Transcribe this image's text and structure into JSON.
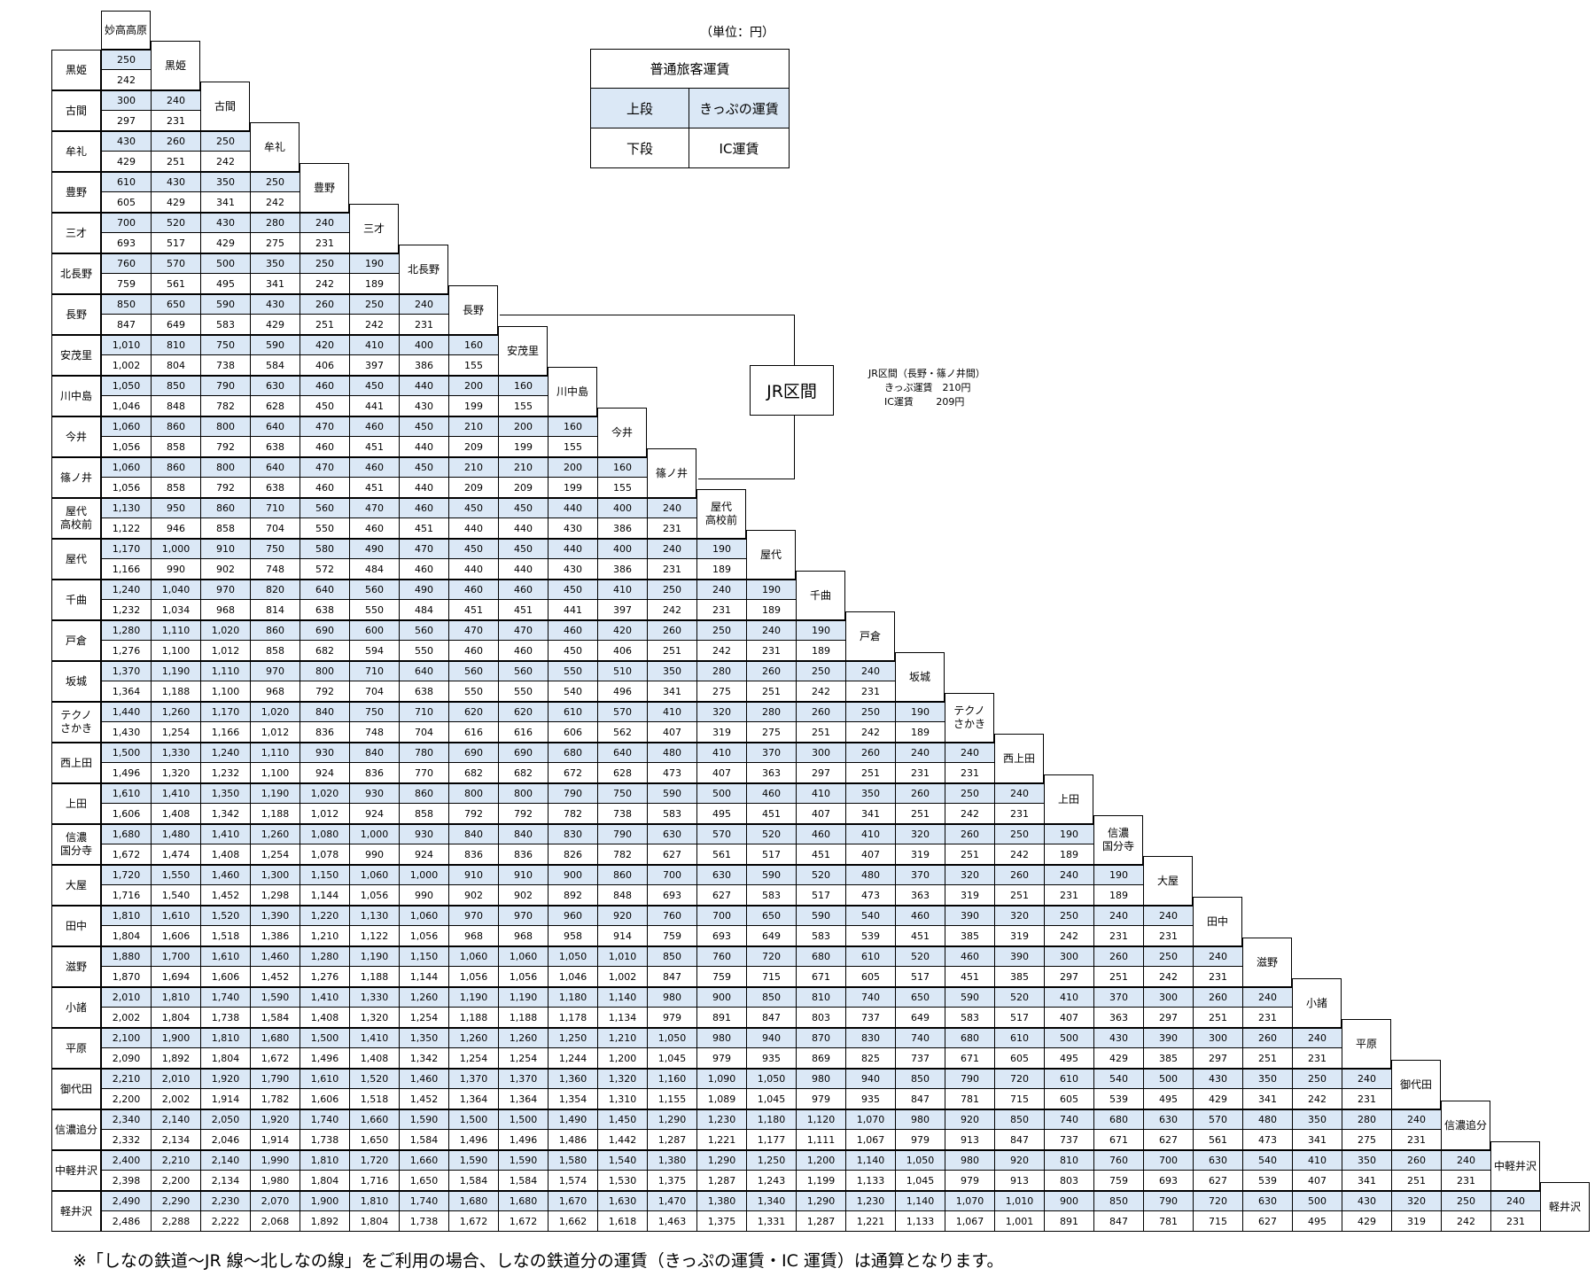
{
  "unit_label": "（単位：円）",
  "legend": {
    "title": "普通旅客運賃",
    "upper_label": "上段",
    "upper_desc": "きっぷの運賃",
    "lower_label": "下段",
    "lower_desc": "IC運賃"
  },
  "jr_section": {
    "label": "JR区間",
    "note_title": "JR区間（長野・篠ノ井間）",
    "ticket_fare": "きっぷ運賃　210円",
    "ic_fare": "IC運賃　　 209円"
  },
  "footnote": "※「しなの鉄道～JR 線～北しなの線」をご利用の場合、しなの鉄道分の運賃（きっぷの運賃・IC 運賃）は通算となります。",
  "colors": {
    "ticket_row_bg": "#dbe8f6"
  },
  "stations": [
    "妙高高原",
    "黒姫",
    "古間",
    "牟礼",
    "豊野",
    "三才",
    "北長野",
    "長野",
    "安茂里",
    "川中島",
    "今井",
    "篠ノ井",
    "屋代\n高校前",
    "屋代",
    "千曲",
    "戸倉",
    "坂城",
    "テクノ\nさかき",
    "西上田",
    "上田",
    "信濃\n国分寺",
    "大屋",
    "田中",
    "滋野",
    "小諸",
    "平原",
    "御代田",
    "信濃追分",
    "中軽井沢",
    "軽井沢"
  ],
  "fares": [
    {
      "t": [
        "250"
      ],
      "ic": [
        "242"
      ]
    },
    {
      "t": [
        "300",
        "240"
      ],
      "ic": [
        "297",
        "231"
      ]
    },
    {
      "t": [
        "430",
        "260",
        "250"
      ],
      "ic": [
        "429",
        "251",
        "242"
      ]
    },
    {
      "t": [
        "610",
        "430",
        "350",
        "250"
      ],
      "ic": [
        "605",
        "429",
        "341",
        "242"
      ]
    },
    {
      "t": [
        "700",
        "520",
        "430",
        "280",
        "240"
      ],
      "ic": [
        "693",
        "517",
        "429",
        "275",
        "231"
      ]
    },
    {
      "t": [
        "760",
        "570",
        "500",
        "350",
        "250",
        "190"
      ],
      "ic": [
        "759",
        "561",
        "495",
        "341",
        "242",
        "189"
      ]
    },
    {
      "t": [
        "850",
        "650",
        "590",
        "430",
        "260",
        "250",
        "240"
      ],
      "ic": [
        "847",
        "649",
        "583",
        "429",
        "251",
        "242",
        "231"
      ]
    },
    {
      "t": [
        "1,010",
        "810",
        "750",
        "590",
        "420",
        "410",
        "400",
        "160"
      ],
      "ic": [
        "1,002",
        "804",
        "738",
        "584",
        "406",
        "397",
        "386",
        "155"
      ]
    },
    {
      "t": [
        "1,050",
        "850",
        "790",
        "630",
        "460",
        "450",
        "440",
        "200",
        "160"
      ],
      "ic": [
        "1,046",
        "848",
        "782",
        "628",
        "450",
        "441",
        "430",
        "199",
        "155"
      ]
    },
    {
      "t": [
        "1,060",
        "860",
        "800",
        "640",
        "470",
        "460",
        "450",
        "210",
        "200",
        "160"
      ],
      "ic": [
        "1,056",
        "858",
        "792",
        "638",
        "460",
        "451",
        "440",
        "209",
        "199",
        "155"
      ]
    },
    {
      "t": [
        "1,060",
        "860",
        "800",
        "640",
        "470",
        "460",
        "450",
        "210",
        "210",
        "200",
        "160"
      ],
      "ic": [
        "1,056",
        "858",
        "792",
        "638",
        "460",
        "451",
        "440",
        "209",
        "209",
        "199",
        "155"
      ]
    },
    {
      "t": [
        "1,130",
        "950",
        "860",
        "710",
        "560",
        "470",
        "460",
        "450",
        "450",
        "440",
        "400",
        "240"
      ],
      "ic": [
        "1,122",
        "946",
        "858",
        "704",
        "550",
        "460",
        "451",
        "440",
        "440",
        "430",
        "386",
        "231"
      ]
    },
    {
      "t": [
        "1,170",
        "1,000",
        "910",
        "750",
        "580",
        "490",
        "470",
        "450",
        "450",
        "440",
        "400",
        "240",
        "190"
      ],
      "ic": [
        "1,166",
        "990",
        "902",
        "748",
        "572",
        "484",
        "460",
        "440",
        "440",
        "430",
        "386",
        "231",
        "189"
      ]
    },
    {
      "t": [
        "1,240",
        "1,040",
        "970",
        "820",
        "640",
        "560",
        "490",
        "460",
        "460",
        "450",
        "410",
        "250",
        "240",
        "190"
      ],
      "ic": [
        "1,232",
        "1,034",
        "968",
        "814",
        "638",
        "550",
        "484",
        "451",
        "451",
        "441",
        "397",
        "242",
        "231",
        "189"
      ]
    },
    {
      "t": [
        "1,280",
        "1,110",
        "1,020",
        "860",
        "690",
        "600",
        "560",
        "470",
        "470",
        "460",
        "420",
        "260",
        "250",
        "240",
        "190"
      ],
      "ic": [
        "1,276",
        "1,100",
        "1,012",
        "858",
        "682",
        "594",
        "550",
        "460",
        "460",
        "450",
        "406",
        "251",
        "242",
        "231",
        "189"
      ]
    },
    {
      "t": [
        "1,370",
        "1,190",
        "1,110",
        "970",
        "800",
        "710",
        "640",
        "560",
        "560",
        "550",
        "510",
        "350",
        "280",
        "260",
        "250",
        "240"
      ],
      "ic": [
        "1,364",
        "1,188",
        "1,100",
        "968",
        "792",
        "704",
        "638",
        "550",
        "550",
        "540",
        "496",
        "341",
        "275",
        "251",
        "242",
        "231"
      ]
    },
    {
      "t": [
        "1,440",
        "1,260",
        "1,170",
        "1,020",
        "840",
        "750",
        "710",
        "620",
        "620",
        "610",
        "570",
        "410",
        "320",
        "280",
        "260",
        "250",
        "190"
      ],
      "ic": [
        "1,430",
        "1,254",
        "1,166",
        "1,012",
        "836",
        "748",
        "704",
        "616",
        "616",
        "606",
        "562",
        "407",
        "319",
        "275",
        "251",
        "242",
        "189"
      ]
    },
    {
      "t": [
        "1,500",
        "1,330",
        "1,240",
        "1,110",
        "930",
        "840",
        "780",
        "690",
        "690",
        "680",
        "640",
        "480",
        "410",
        "370",
        "300",
        "260",
        "240",
        "240"
      ],
      "ic": [
        "1,496",
        "1,320",
        "1,232",
        "1,100",
        "924",
        "836",
        "770",
        "682",
        "682",
        "672",
        "628",
        "473",
        "407",
        "363",
        "297",
        "251",
        "231",
        "231"
      ]
    },
    {
      "t": [
        "1,610",
        "1,410",
        "1,350",
        "1,190",
        "1,020",
        "930",
        "860",
        "800",
        "800",
        "790",
        "750",
        "590",
        "500",
        "460",
        "410",
        "350",
        "260",
        "250",
        "240"
      ],
      "ic": [
        "1,606",
        "1,408",
        "1,342",
        "1,188",
        "1,012",
        "924",
        "858",
        "792",
        "792",
        "782",
        "738",
        "583",
        "495",
        "451",
        "407",
        "341",
        "251",
        "242",
        "231"
      ]
    },
    {
      "t": [
        "1,680",
        "1,480",
        "1,410",
        "1,260",
        "1,080",
        "1,000",
        "930",
        "840",
        "840",
        "830",
        "790",
        "630",
        "570",
        "520",
        "460",
        "410",
        "320",
        "260",
        "250",
        "190"
      ],
      "ic": [
        "1,672",
        "1,474",
        "1,408",
        "1,254",
        "1,078",
        "990",
        "924",
        "836",
        "836",
        "826",
        "782",
        "627",
        "561",
        "517",
        "451",
        "407",
        "319",
        "251",
        "242",
        "189"
      ]
    },
    {
      "t": [
        "1,720",
        "1,550",
        "1,460",
        "1,300",
        "1,150",
        "1,060",
        "1,000",
        "910",
        "910",
        "900",
        "860",
        "700",
        "630",
        "590",
        "520",
        "480",
        "370",
        "320",
        "260",
        "240",
        "190"
      ],
      "ic": [
        "1,716",
        "1,540",
        "1,452",
        "1,298",
        "1,144",
        "1,056",
        "990",
        "902",
        "902",
        "892",
        "848",
        "693",
        "627",
        "583",
        "517",
        "473",
        "363",
        "319",
        "251",
        "231",
        "189"
      ]
    },
    {
      "t": [
        "1,810",
        "1,610",
        "1,520",
        "1,390",
        "1,220",
        "1,130",
        "1,060",
        "970",
        "970",
        "960",
        "920",
        "760",
        "700",
        "650",
        "590",
        "540",
        "460",
        "390",
        "320",
        "250",
        "240",
        "240"
      ],
      "ic": [
        "1,804",
        "1,606",
        "1,518",
        "1,386",
        "1,210",
        "1,122",
        "1,056",
        "968",
        "968",
        "958",
        "914",
        "759",
        "693",
        "649",
        "583",
        "539",
        "451",
        "385",
        "319",
        "242",
        "231",
        "231"
      ]
    },
    {
      "t": [
        "1,880",
        "1,700",
        "1,610",
        "1,460",
        "1,280",
        "1,190",
        "1,150",
        "1,060",
        "1,060",
        "1,050",
        "1,010",
        "850",
        "760",
        "720",
        "680",
        "610",
        "520",
        "460",
        "390",
        "300",
        "260",
        "250",
        "240"
      ],
      "ic": [
        "1,870",
        "1,694",
        "1,606",
        "1,452",
        "1,276",
        "1,188",
        "1,144",
        "1,056",
        "1,056",
        "1,046",
        "1,002",
        "847",
        "759",
        "715",
        "671",
        "605",
        "517",
        "451",
        "385",
        "297",
        "251",
        "242",
        "231"
      ]
    },
    {
      "t": [
        "2,010",
        "1,810",
        "1,740",
        "1,590",
        "1,410",
        "1,330",
        "1,260",
        "1,190",
        "1,190",
        "1,180",
        "1,140",
        "980",
        "900",
        "850",
        "810",
        "740",
        "650",
        "590",
        "520",
        "410",
        "370",
        "300",
        "260",
        "240"
      ],
      "ic": [
        "2,002",
        "1,804",
        "1,738",
        "1,584",
        "1,408",
        "1,320",
        "1,254",
        "1,188",
        "1,188",
        "1,178",
        "1,134",
        "979",
        "891",
        "847",
        "803",
        "737",
        "649",
        "583",
        "517",
        "407",
        "363",
        "297",
        "251",
        "231"
      ]
    },
    {
      "t": [
        "2,100",
        "1,900",
        "1,810",
        "1,680",
        "1,500",
        "1,410",
        "1,350",
        "1,260",
        "1,260",
        "1,250",
        "1,210",
        "1,050",
        "980",
        "940",
        "870",
        "830",
        "740",
        "680",
        "610",
        "500",
        "430",
        "390",
        "300",
        "260",
        "240"
      ],
      "ic": [
        "2,090",
        "1,892",
        "1,804",
        "1,672",
        "1,496",
        "1,408",
        "1,342",
        "1,254",
        "1,254",
        "1,244",
        "1,200",
        "1,045",
        "979",
        "935",
        "869",
        "825",
        "737",
        "671",
        "605",
        "495",
        "429",
        "385",
        "297",
        "251",
        "231"
      ]
    },
    {
      "t": [
        "2,210",
        "2,010",
        "1,920",
        "1,790",
        "1,610",
        "1,520",
        "1,460",
        "1,370",
        "1,370",
        "1,360",
        "1,320",
        "1,160",
        "1,090",
        "1,050",
        "980",
        "940",
        "850",
        "790",
        "720",
        "610",
        "540",
        "500",
        "430",
        "350",
        "250",
        "240"
      ],
      "ic": [
        "2,200",
        "2,002",
        "1,914",
        "1,782",
        "1,606",
        "1,518",
        "1,452",
        "1,364",
        "1,364",
        "1,354",
        "1,310",
        "1,155",
        "1,089",
        "1,045",
        "979",
        "935",
        "847",
        "781",
        "715",
        "605",
        "539",
        "495",
        "429",
        "341",
        "242",
        "231"
      ]
    },
    {
      "t": [
        "2,340",
        "2,140",
        "2,050",
        "1,920",
        "1,740",
        "1,660",
        "1,590",
        "1,500",
        "1,500",
        "1,490",
        "1,450",
        "1,290",
        "1,230",
        "1,180",
        "1,120",
        "1,070",
        "980",
        "920",
        "850",
        "740",
        "680",
        "630",
        "570",
        "480",
        "350",
        "280",
        "240"
      ],
      "ic": [
        "2,332",
        "2,134",
        "2,046",
        "1,914",
        "1,738",
        "1,650",
        "1,584",
        "1,496",
        "1,496",
        "1,486",
        "1,442",
        "1,287",
        "1,221",
        "1,177",
        "1,111",
        "1,067",
        "979",
        "913",
        "847",
        "737",
        "671",
        "627",
        "561",
        "473",
        "341",
        "275",
        "231"
      ]
    },
    {
      "t": [
        "2,400",
        "2,210",
        "2,140",
        "1,990",
        "1,810",
        "1,720",
        "1,660",
        "1,590",
        "1,590",
        "1,580",
        "1,540",
        "1,380",
        "1,290",
        "1,250",
        "1,200",
        "1,140",
        "1,050",
        "980",
        "920",
        "810",
        "760",
        "700",
        "630",
        "540",
        "410",
        "350",
        "260",
        "240"
      ],
      "ic": [
        "2,398",
        "2,200",
        "2,134",
        "1,980",
        "1,804",
        "1,716",
        "1,650",
        "1,584",
        "1,584",
        "1,574",
        "1,530",
        "1,375",
        "1,287",
        "1,243",
        "1,199",
        "1,133",
        "1,045",
        "979",
        "913",
        "803",
        "759",
        "693",
        "627",
        "539",
        "407",
        "341",
        "251",
        "231"
      ]
    },
    {
      "t": [
        "2,490",
        "2,290",
        "2,230",
        "2,070",
        "1,900",
        "1,810",
        "1,740",
        "1,680",
        "1,680",
        "1,670",
        "1,630",
        "1,470",
        "1,380",
        "1,340",
        "1,290",
        "1,230",
        "1,140",
        "1,070",
        "1,010",
        "900",
        "850",
        "790",
        "720",
        "630",
        "500",
        "430",
        "320",
        "250",
        "240"
      ],
      "ic": [
        "2,486",
        "2,288",
        "2,222",
        "2,068",
        "1,892",
        "1,804",
        "1,738",
        "1,672",
        "1,672",
        "1,662",
        "1,618",
        "1,463",
        "1,375",
        "1,331",
        "1,287",
        "1,221",
        "1,133",
        "1,067",
        "1,001",
        "891",
        "847",
        "781",
        "715",
        "627",
        "495",
        "429",
        "319",
        "242",
        "231"
      ]
    }
  ]
}
